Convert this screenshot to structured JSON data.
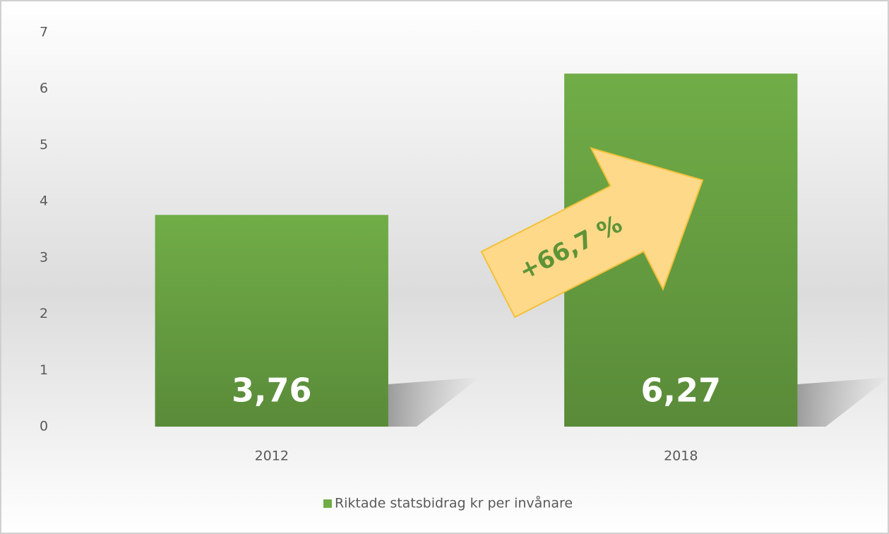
{
  "chart_data": {
    "type": "bar",
    "categories": [
      "2012",
      "2018"
    ],
    "values": [
      3.76,
      6.27
    ],
    "value_labels": [
      "3,76",
      "6,27"
    ],
    "color": "#70ad47",
    "ylim": [
      0,
      7
    ],
    "yticks": [
      0,
      1,
      2,
      3,
      4,
      5,
      6,
      7
    ],
    "grid": false,
    "legend": "bottom",
    "series_name": "Riktade statsbidrag kr per invånare",
    "annotation": "+66,7 %"
  }
}
